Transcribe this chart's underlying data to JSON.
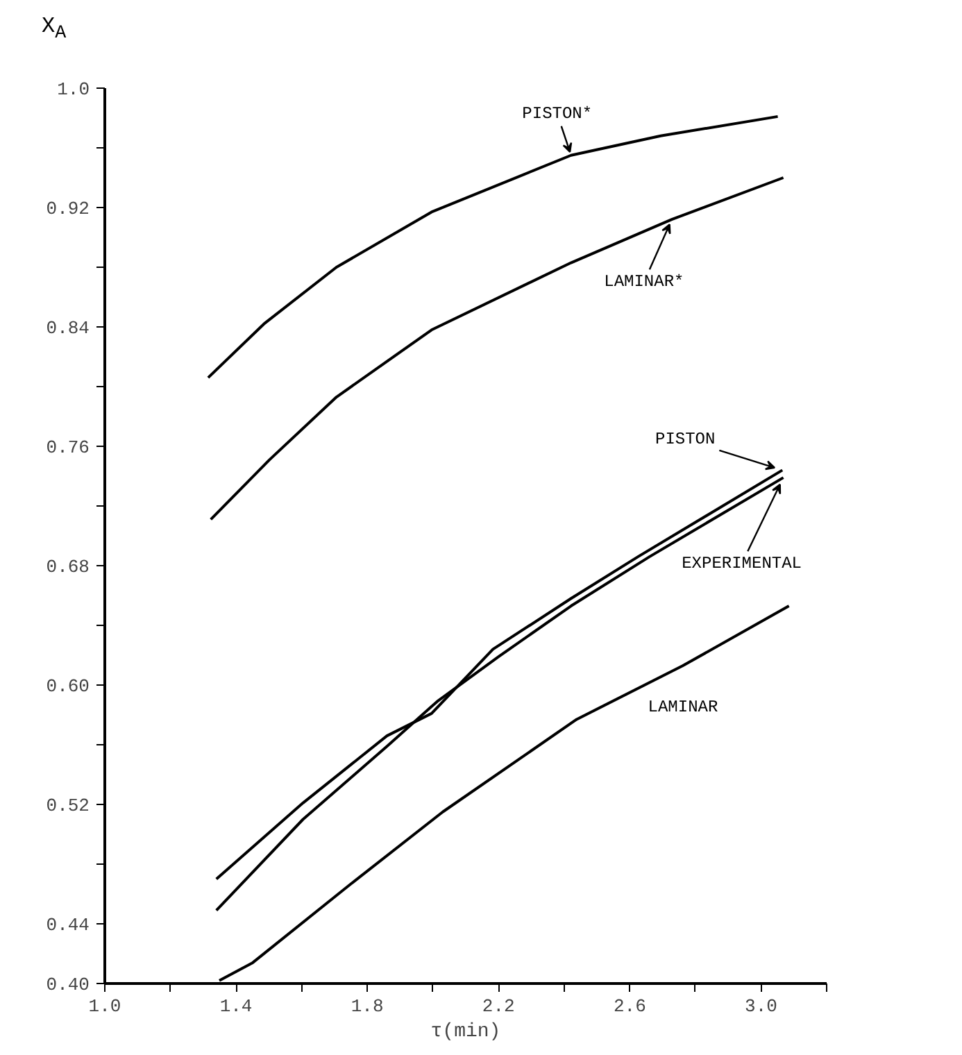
{
  "chart_data": {
    "type": "line",
    "xlabel": "τ(min)",
    "ylabel": "X$_{A}$",
    "xlim": [
      1.0,
      3.2
    ],
    "ylim": [
      0.4,
      1.0
    ],
    "xticks": [
      {
        "value": 1.0,
        "label": "1.0"
      },
      {
        "value": 1.2,
        "label": null
      },
      1.4,
      {
        "value": 1.6,
        "label": null
      },
      1.8,
      {
        "value": 2.0,
        "label": null
      },
      2.2,
      {
        "value": 2.4,
        "label": null
      },
      2.6,
      {
        "value": 2.8,
        "label": null
      },
      {
        "value": 3.0,
        "label": "3.0"
      },
      {
        "value": 3.2,
        "label": null
      }
    ],
    "yticks": [
      {
        "value": 0.4,
        "label": "0.40"
      },
      0.44,
      {
        "value": 0.48,
        "label": null
      },
      0.52,
      {
        "value": 0.56,
        "label": null
      },
      {
        "value": 0.6,
        "label": "0.60"
      },
      {
        "value": 0.64,
        "label": null
      },
      0.68,
      {
        "value": 0.72,
        "label": null
      },
      0.76,
      {
        "value": 0.8,
        "label": null
      },
      0.84,
      {
        "value": 0.88,
        "label": null
      },
      0.92,
      {
        "value": 0.96,
        "label": null
      },
      {
        "value": 1.0,
        "label": "1.0"
      }
    ],
    "grid": false,
    "legend": false,
    "marker": "none",
    "line_style": "solid",
    "series": [
      {
        "name": "PISTON*",
        "color": "#000000",
        "x": [
          1.315,
          1.485,
          1.706,
          1.996,
          2.421,
          2.694,
          3.051
        ],
        "values": [
          0.806,
          0.842,
          0.88,
          0.917,
          0.955,
          0.968,
          0.981
        ]
      },
      {
        "name": "LAMINAR*",
        "color": "#000000",
        "x": [
          1.323,
          1.502,
          1.706,
          1.996,
          2.421,
          2.728,
          3.068
        ],
        "values": [
          0.711,
          0.751,
          0.793,
          0.838,
          0.883,
          0.912,
          0.94
        ]
      },
      {
        "name": "PISTON",
        "color": "#000000",
        "x": [
          1.34,
          1.604,
          1.86,
          1.996,
          2.183,
          2.421,
          2.625,
          3.065
        ],
        "values": [
          0.47,
          0.521,
          0.566,
          0.581,
          0.624,
          0.658,
          0.686,
          0.744
        ]
      },
      {
        "name": "EXPERIMENTAL",
        "color": "#000000",
        "x": [
          1.34,
          1.604,
          1.86,
          2.013,
          2.2,
          2.421,
          2.66,
          3.068
        ],
        "values": [
          0.449,
          0.51,
          0.559,
          0.589,
          0.619,
          0.653,
          0.686,
          0.739
        ]
      },
      {
        "name": "LAMINAR",
        "color": "#000000",
        "x": [
          1.349,
          1.451,
          1.74,
          2.03,
          2.438,
          2.762,
          3.085
        ],
        "values": [
          0.402,
          0.414,
          0.465,
          0.515,
          0.577,
          0.613,
          0.653
        ]
      }
    ]
  }
}
